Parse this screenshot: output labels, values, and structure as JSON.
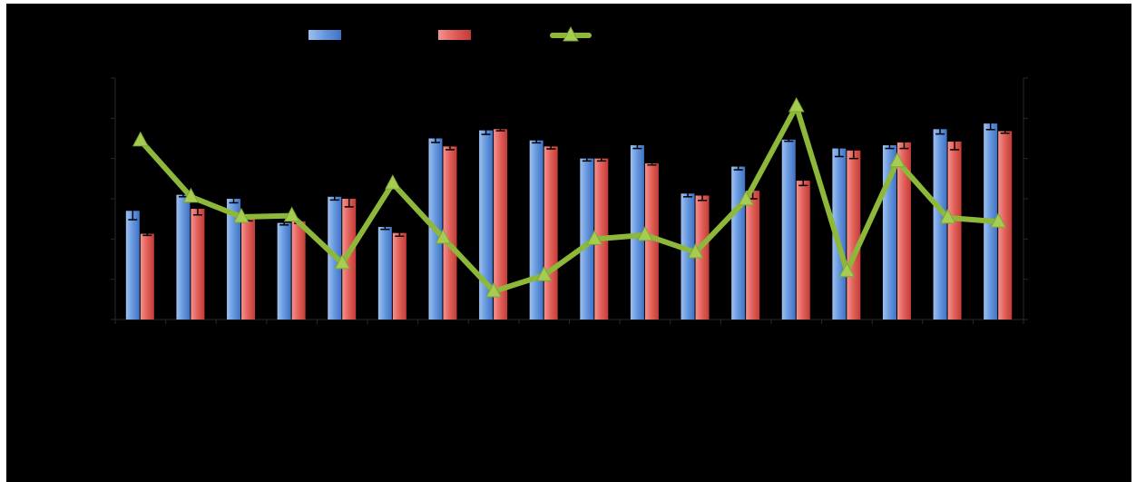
{
  "chart_data": {
    "type": "bar",
    "categories": [
      "",
      "",
      "",
      "",
      "",
      "",
      "",
      "",
      "",
      "",
      "",
      "",
      "",
      "",
      "",
      "",
      "",
      ""
    ],
    "left_axis": {
      "ylim": [
        0,
        6
      ],
      "ticks": [
        0,
        1,
        2,
        3,
        4,
        5,
        6
      ],
      "tick_labels_visible": false
    },
    "right_axis": {
      "ylim": [
        0,
        6
      ],
      "ticks": [
        0,
        1,
        2,
        3,
        4,
        5,
        6
      ],
      "tick_labels_visible": false
    },
    "series": [
      {
        "kind": "bar",
        "axis": "left",
        "color": "#5b8fd8",
        "values": [
          2.7,
          3.1,
          3.0,
          2.4,
          3.05,
          2.3,
          4.5,
          4.7,
          4.45,
          4.0,
          4.33,
          3.13,
          3.8,
          4.47,
          4.25,
          4.33,
          4.73,
          4.87
        ],
        "errors": [
          0.22,
          0.05,
          0.1,
          0.05,
          0.08,
          0.06,
          0.1,
          0.1,
          0.06,
          0.06,
          0.08,
          0.08,
          0.08,
          0.04,
          0.2,
          0.08,
          0.12,
          0.15
        ]
      },
      {
        "kind": "bar",
        "axis": "left",
        "color": "#e35a55",
        "values": [
          2.13,
          2.75,
          2.5,
          2.44,
          3.0,
          2.15,
          4.3,
          4.73,
          4.3,
          4.0,
          3.88,
          3.08,
          3.2,
          3.45,
          4.2,
          4.4,
          4.42,
          4.68
        ],
        "errors": [
          0.04,
          0.15,
          0.05,
          0.05,
          0.2,
          0.08,
          0.08,
          0.04,
          0.06,
          0.06,
          0.04,
          0.12,
          0.2,
          0.12,
          0.2,
          0.15,
          0.2,
          0.05
        ]
      },
      {
        "kind": "line",
        "axis": "right",
        "color": "#8db83a",
        "marker": "triangle",
        "values": [
          4.45,
          3.05,
          2.55,
          2.58,
          1.4,
          3.38,
          2.03,
          0.7,
          1.1,
          2.0,
          2.1,
          1.67,
          2.98,
          5.3,
          1.2,
          3.93,
          2.53,
          2.43
        ]
      }
    ],
    "legend": {
      "position": "top-center",
      "entries": [
        "",
        "",
        ""
      ]
    },
    "grid": false,
    "title": "",
    "xlabel": "",
    "ylabel": ""
  }
}
